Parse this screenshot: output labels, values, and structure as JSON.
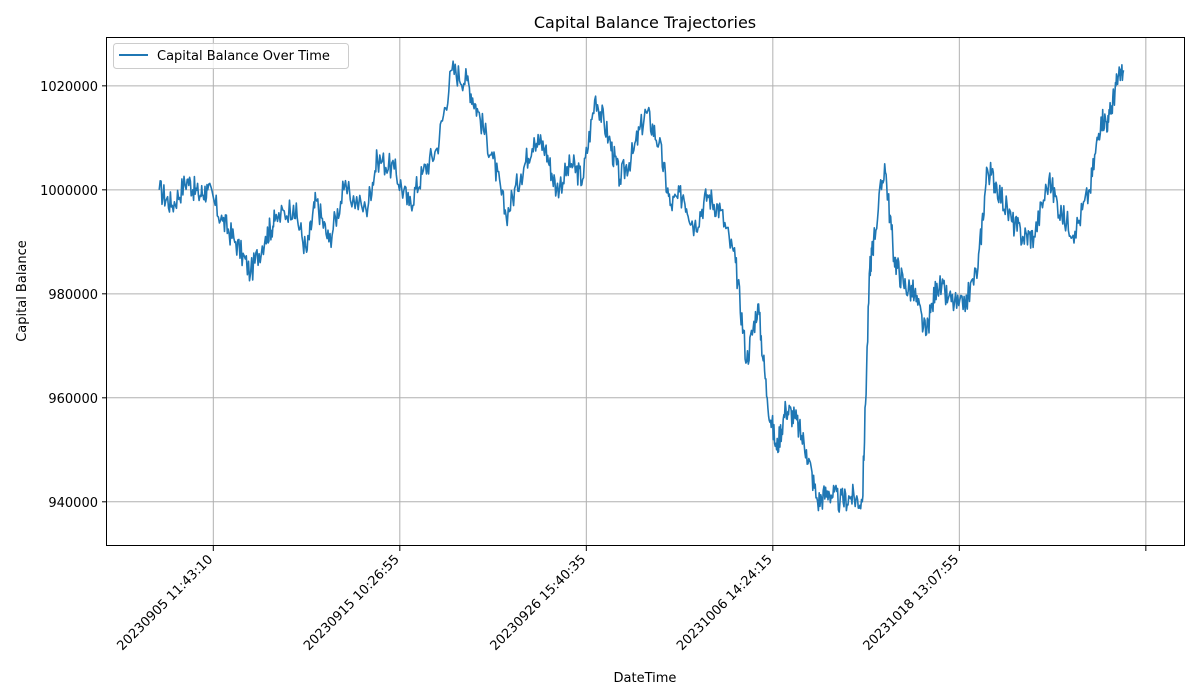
{
  "chart_data": {
    "type": "line",
    "title": "Capital Balance Trajectories",
    "xlabel": "DateTime",
    "ylabel": "Capital Balance",
    "ylim": [
      931500,
      1029200
    ],
    "yticks": [
      940000,
      960000,
      980000,
      1000000,
      1020000
    ],
    "xticks": [
      {
        "label": "20230905  11:43:10",
        "x": 1
      },
      {
        "label": "20230915  10:26:55",
        "x": 2
      },
      {
        "label": "20230926  15:40:35",
        "x": 3
      },
      {
        "label": "20231006  14:24:15",
        "x": 4
      },
      {
        "label": "20231018  13:07:55",
        "x": 5
      },
      {
        "label": "",
        "x": 6
      }
    ],
    "xlim": [
      0.43,
      6.21
    ],
    "grid": true,
    "legend": {
      "position": "top-left",
      "entries": [
        "Capital Balance Over Time"
      ]
    },
    "series": [
      {
        "name": "Capital Balance Over Time",
        "color": "#1f77b4",
        "x": [
          0.71,
          0.78,
          0.86,
          0.92,
          0.97,
          1.05,
          1.12,
          1.2,
          1.28,
          1.33,
          1.43,
          1.5,
          1.55,
          1.62,
          1.7,
          1.82,
          1.88,
          1.97,
          2.05,
          2.12,
          2.2,
          2.28,
          2.36,
          2.42,
          2.5,
          2.57,
          2.65,
          2.72,
          2.78,
          2.84,
          2.92,
          2.98,
          3.05,
          3.12,
          3.18,
          3.25,
          3.32,
          3.39,
          3.45,
          3.52,
          3.58,
          3.65,
          3.72,
          3.8,
          3.86,
          3.92,
          3.97,
          4.02,
          4.07,
          4.12,
          4.18,
          4.24,
          4.3,
          4.36,
          4.42,
          4.48,
          4.52,
          4.54,
          4.6,
          4.65,
          4.7,
          4.76,
          4.82,
          4.88,
          4.94,
          5.02,
          5.1,
          5.15,
          5.2,
          5.28,
          5.34,
          5.4,
          5.48,
          5.55,
          5.62,
          5.7,
          5.76,
          5.8,
          5.84,
          5.88
        ],
        "y": [
          1000000,
          997000,
          1002000,
          999000,
          1000000,
          994000,
          990000,
          984000,
          991000,
          994000,
          997000,
          988000,
          998000,
          990000,
          1000000,
          996000,
          1006000,
          1004000,
          997000,
          1003000,
          1008000,
          1023000,
          1021000,
          1015000,
          1006000,
          995000,
          1003000,
          1010000,
          1008000,
          1000000,
          1005000,
          1002000,
          1018000,
          1010000,
          1002000,
          1007000,
          1015000,
          1009000,
          997000,
          999000,
          993000,
          999000,
          996000,
          986000,
          967000,
          978000,
          960000,
          950000,
          958000,
          956000,
          950000,
          940000,
          942000,
          940000,
          941000,
          940000,
          985000,
          990000,
          1005000,
          987000,
          982000,
          980000,
          972000,
          982000,
          979000,
          977000,
          985000,
          1004000,
          1001000,
          994000,
          991000,
          991000,
          1002000,
          995000,
          992000,
          1000000,
          1014000,
          1013000,
          1020000,
          1023000
        ]
      }
    ]
  }
}
